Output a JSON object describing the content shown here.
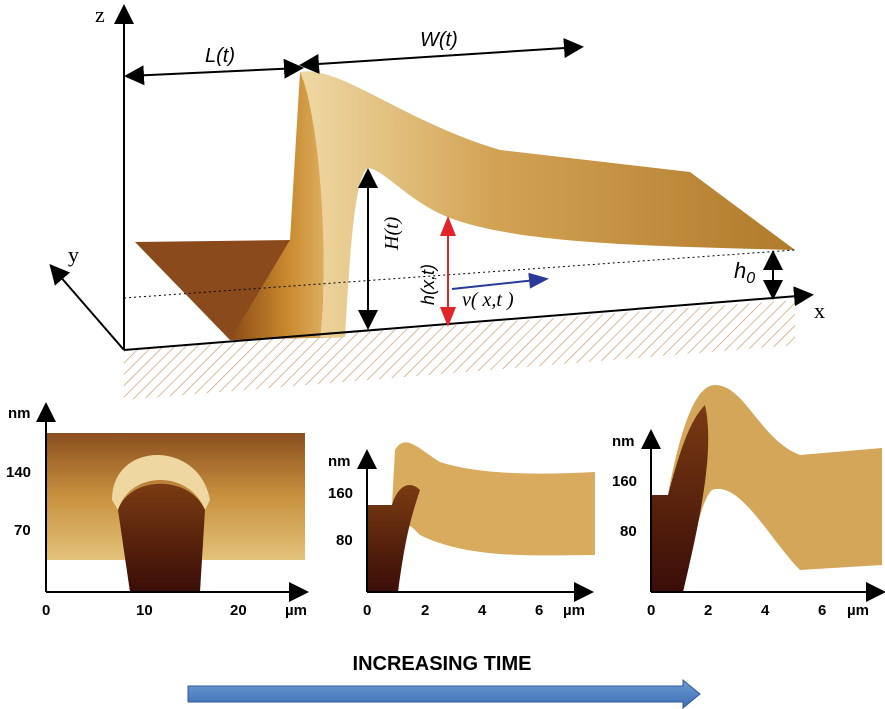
{
  "schematic": {
    "axes": {
      "z": "z",
      "y": "y",
      "x": "x"
    },
    "labels": {
      "L": "L(t)",
      "W": "W(t)",
      "H": "H(t)",
      "h": "h(x,t)",
      "v": "v( x,t )",
      "h0": {
        "base": "h",
        "sub": "0"
      }
    }
  },
  "panels": [
    {
      "y_unit": "nm",
      "x_unit": "µm",
      "xticks": [
        0,
        10,
        20
      ],
      "yticks": [
        140,
        70
      ]
    },
    {
      "y_unit": "nm",
      "x_unit": "µm",
      "xticks": [
        0,
        2,
        4,
        6
      ],
      "yticks": [
        160,
        80
      ]
    },
    {
      "y_unit": "nm",
      "x_unit": "µm",
      "xticks": [
        0,
        2,
        4,
        6
      ],
      "yticks": [
        160,
        80
      ]
    }
  ],
  "caption": "INCREASING TIME"
}
